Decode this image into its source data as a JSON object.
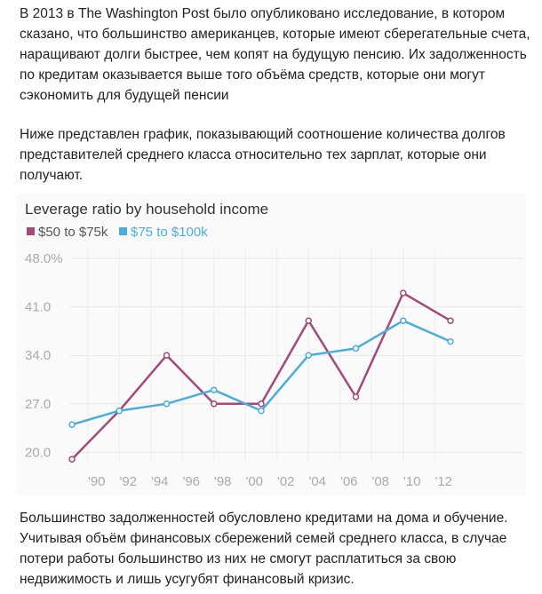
{
  "paragraphs": [
    "В 2013 в The Washington Post было опубликовано исследование, в котором сказано, что большинство американцев, которые имеют сберегательные счета, наращивают долги быстрее, чем копят на будущую пенсию. Их задолженность по кредитам оказывается выше того объёма средств, которые они могут сэкономить для будущей пенсии",
    "Ниже представлен график, показывающий соотношение количества долгов представителей среднего класса относительно тех зарплат, которые они получают.",
    "Большинство задолженностей обусловлено кредитами на дома и обучение. Учитывая объём финансовых сбережений семей среднего класса, в случае потери работы большинство из них не смогут расплатиться за свою недвижимость и лишь усугубят финансовый кризис."
  ],
  "chart_data": {
    "type": "line",
    "title": "Leverage ratio by household income",
    "x": [
      1989,
      1992,
      1995,
      1998,
      2001,
      2004,
      2007,
      2010,
      2013
    ],
    "series": [
      {
        "name": "$50 to $75k",
        "color": "#a34a78",
        "values": [
          19,
          26,
          34,
          27,
          27,
          39,
          28,
          43,
          39
        ]
      },
      {
        "name": "$75 to $100k",
        "color": "#4aaedb",
        "values": [
          24,
          26,
          27,
          29,
          26,
          34,
          35,
          39,
          36
        ]
      }
    ],
    "yticks": [
      "20.0",
      "27.0",
      "34.0",
      "41.0",
      "48.0%"
    ],
    "ytick_values": [
      20,
      27,
      34,
      41,
      48
    ],
    "xticks": [
      "'90",
      "'92",
      "'94",
      "'96",
      "'98",
      "'00",
      "'02",
      "'04",
      "'06",
      "'08",
      "'10",
      "'12"
    ],
    "xtick_values": [
      1990,
      1992,
      1994,
      1996,
      1998,
      2000,
      2002,
      2004,
      2006,
      2008,
      2010,
      2012
    ],
    "ylim": [
      20,
      48
    ],
    "grid": true,
    "legend": "top-left"
  }
}
